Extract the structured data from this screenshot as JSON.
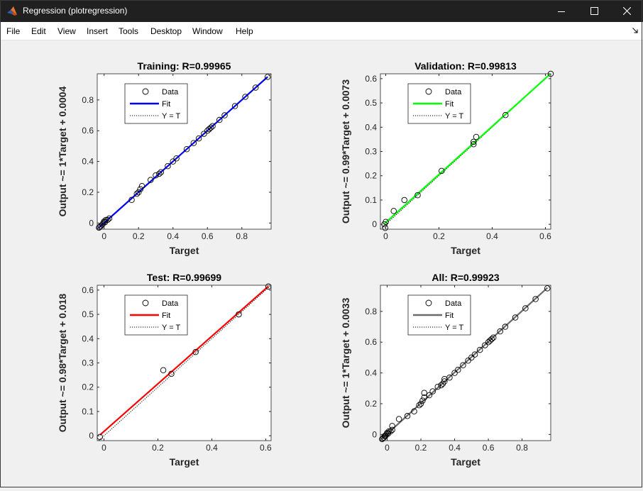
{
  "window": {
    "title": "Regression (plotregression)",
    "icons": {
      "app": "matlab-logo-icon",
      "minimize": "minimize-icon",
      "maximize": "maximize-icon",
      "close": "close-icon",
      "dock": "dock-arrow-icon"
    }
  },
  "menu": {
    "items": [
      "File",
      "Edit",
      "View",
      "Insert",
      "Tools",
      "Desktop",
      "Window",
      "Help"
    ]
  },
  "chart_data": [
    {
      "type": "scatter",
      "title": "Training: R=0.99965",
      "xlabel": "Target",
      "ylabel": "Output ~= 1*Target + 0.0004",
      "xlim": [
        -0.04,
        0.97
      ],
      "ylim": [
        -0.04,
        0.97
      ],
      "xticks": [
        "0",
        "0.2",
        "0.4",
        "0.6",
        "0.8"
      ],
      "yticks": [
        "0",
        "0.2",
        "0.4",
        "0.6",
        "0.8"
      ],
      "fit": {
        "slope": 1.0,
        "intercept": 0.0004,
        "color": "#0000ff"
      },
      "series": [
        {
          "name": "Data",
          "points": [
            [
              -0.03,
              -0.03
            ],
            [
              -0.025,
              -0.025
            ],
            [
              -0.02,
              -0.02
            ],
            [
              -0.01,
              -0.01
            ],
            [
              -0.005,
              0.0
            ],
            [
              0.0,
              0.01
            ],
            [
              0.005,
              0.005
            ],
            [
              0.01,
              0.02
            ],
            [
              0.02,
              0.02
            ],
            [
              0.03,
              0.03
            ],
            [
              0.16,
              0.15
            ],
            [
              0.19,
              0.19
            ],
            [
              0.2,
              0.2
            ],
            [
              0.21,
              0.22
            ],
            [
              0.22,
              0.24
            ],
            [
              0.27,
              0.28
            ],
            [
              0.3,
              0.31
            ],
            [
              0.32,
              0.32
            ],
            [
              0.33,
              0.33
            ],
            [
              0.37,
              0.37
            ],
            [
              0.4,
              0.4
            ],
            [
              0.42,
              0.42
            ],
            [
              0.48,
              0.48
            ],
            [
              0.52,
              0.52
            ],
            [
              0.55,
              0.55
            ],
            [
              0.58,
              0.58
            ],
            [
              0.6,
              0.6
            ],
            [
              0.61,
              0.61
            ],
            [
              0.62,
              0.62
            ],
            [
              0.63,
              0.63
            ],
            [
              0.67,
              0.67
            ],
            [
              0.7,
              0.7
            ],
            [
              0.76,
              0.76
            ],
            [
              0.82,
              0.82
            ],
            [
              0.88,
              0.88
            ],
            [
              0.95,
              0.95
            ]
          ]
        }
      ],
      "legend": [
        "Data",
        "Fit",
        "Y = T"
      ],
      "legend_location": "top-left"
    },
    {
      "type": "scatter",
      "title": "Validation: R=0.99813",
      "xlabel": "Target",
      "ylabel": "Output ~= 0.99*Target + 0.0073",
      "xlim": [
        -0.02,
        0.62
      ],
      "ylim": [
        -0.02,
        0.62
      ],
      "xticks": [
        "0",
        "0.2",
        "0.4",
        "0.6"
      ],
      "yticks": [
        "0",
        "0.1",
        "0.2",
        "0.3",
        "0.4",
        "0.5",
        "0.6"
      ],
      "fit": {
        "slope": 0.99,
        "intercept": 0.0073,
        "color": "#00ff00"
      },
      "series": [
        {
          "name": "Data",
          "points": [
            [
              -0.005,
              0.0
            ],
            [
              -0.002,
              -0.015
            ],
            [
              0.0,
              0.01
            ],
            [
              0.03,
              0.055
            ],
            [
              0.07,
              0.1
            ],
            [
              0.12,
              0.12
            ],
            [
              0.21,
              0.22
            ],
            [
              0.33,
              0.33
            ],
            [
              0.33,
              0.34
            ],
            [
              0.34,
              0.36
            ],
            [
              0.45,
              0.45
            ],
            [
              0.62,
              0.62
            ]
          ]
        }
      ],
      "legend": [
        "Data",
        "Fit",
        "Y = T"
      ],
      "legend_location": "top-left"
    },
    {
      "type": "scatter",
      "title": "Test: R=0.99699",
      "xlabel": "Target",
      "ylabel": "Output ~= 0.98*Target + 0.018",
      "xlim": [
        -0.025,
        0.62
      ],
      "ylim": [
        -0.02,
        0.62
      ],
      "xticks": [
        "0",
        "0.2",
        "0.4",
        "0.6"
      ],
      "yticks": [
        "0",
        "0.1",
        "0.2",
        "0.3",
        "0.4",
        "0.5",
        "0.6"
      ],
      "fit": {
        "slope": 0.98,
        "intercept": 0.018,
        "color": "#ff0000"
      },
      "series": [
        {
          "name": "Data",
          "points": [
            [
              -0.015,
              -0.005
            ],
            [
              0.22,
              0.27
            ],
            [
              0.25,
              0.255
            ],
            [
              0.34,
              0.345
            ],
            [
              0.5,
              0.5
            ],
            [
              0.61,
              0.615
            ]
          ]
        }
      ],
      "legend": [
        "Data",
        "Fit",
        "Y = T"
      ],
      "legend_location": "top-left"
    },
    {
      "type": "scatter",
      "title": "All: R=0.99923",
      "xlabel": "Target",
      "ylabel": "Output ~= 1*Target + 0.0033",
      "xlim": [
        -0.04,
        0.97
      ],
      "ylim": [
        -0.04,
        0.97
      ],
      "xticks": [
        "0",
        "0.2",
        "0.4",
        "0.6",
        "0.8"
      ],
      "yticks": [
        "0",
        "0.2",
        "0.4",
        "0.6",
        "0.8"
      ],
      "fit": {
        "slope": 1.0,
        "intercept": 0.0033,
        "color": "#6b6b6b"
      },
      "series": [
        {
          "name": "Data",
          "points": [
            [
              -0.03,
              -0.03
            ],
            [
              -0.025,
              -0.025
            ],
            [
              -0.02,
              -0.02
            ],
            [
              -0.015,
              -0.01
            ],
            [
              -0.01,
              -0.01
            ],
            [
              -0.005,
              0.0
            ],
            [
              0.0,
              0.01
            ],
            [
              0.005,
              0.005
            ],
            [
              0.01,
              0.02
            ],
            [
              0.02,
              0.02
            ],
            [
              0.03,
              0.03
            ],
            [
              0.03,
              0.055
            ],
            [
              0.07,
              0.1
            ],
            [
              0.12,
              0.12
            ],
            [
              0.16,
              0.15
            ],
            [
              0.19,
              0.19
            ],
            [
              0.2,
              0.2
            ],
            [
              0.21,
              0.22
            ],
            [
              0.22,
              0.24
            ],
            [
              0.22,
              0.27
            ],
            [
              0.25,
              0.255
            ],
            [
              0.27,
              0.28
            ],
            [
              0.3,
              0.31
            ],
            [
              0.32,
              0.32
            ],
            [
              0.33,
              0.33
            ],
            [
              0.34,
              0.345
            ],
            [
              0.34,
              0.36
            ],
            [
              0.37,
              0.37
            ],
            [
              0.4,
              0.4
            ],
            [
              0.42,
              0.42
            ],
            [
              0.45,
              0.45
            ],
            [
              0.48,
              0.48
            ],
            [
              0.5,
              0.5
            ],
            [
              0.52,
              0.52
            ],
            [
              0.55,
              0.55
            ],
            [
              0.58,
              0.58
            ],
            [
              0.6,
              0.6
            ],
            [
              0.61,
              0.61
            ],
            [
              0.62,
              0.62
            ],
            [
              0.63,
              0.63
            ],
            [
              0.67,
              0.67
            ],
            [
              0.7,
              0.7
            ],
            [
              0.76,
              0.76
            ],
            [
              0.82,
              0.82
            ],
            [
              0.88,
              0.88
            ],
            [
              0.95,
              0.95
            ]
          ]
        }
      ],
      "legend": [
        "Data",
        "Fit",
        "Y = T"
      ],
      "legend_location": "top-left"
    }
  ]
}
